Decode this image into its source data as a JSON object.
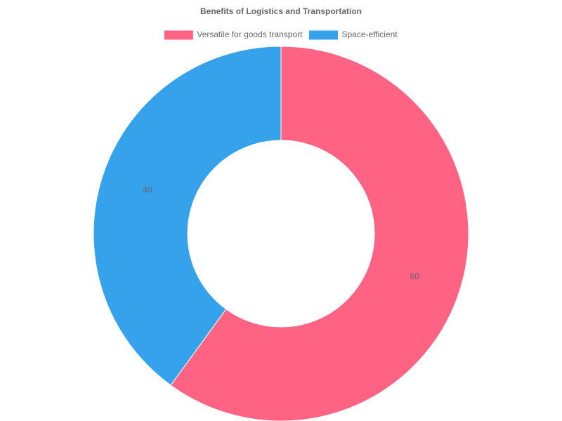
{
  "chart_data": {
    "type": "doughnut",
    "title": "Benefits of Logistics and Transportation",
    "categories": [
      "Versatile for goods transport",
      "Space-efficient"
    ],
    "values": [
      60,
      40
    ],
    "colors": [
      "#ff6384",
      "#36a2eb"
    ],
    "legend": "top"
  }
}
